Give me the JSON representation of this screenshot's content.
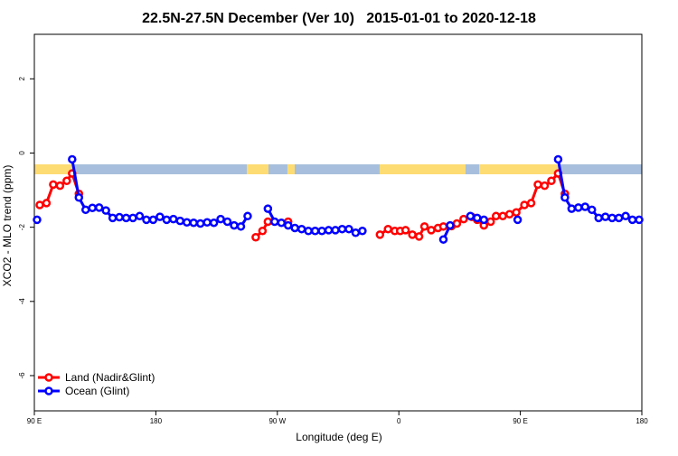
{
  "chart_data": {
    "type": "line",
    "title": "22.5N-27.5N December (Ver 10)   2015-01-01 to 2020-12-18",
    "x_label": "Longitude (deg E)",
    "y_label": "XCO2 - MLO trend (ppm)",
    "xlim": [
      90,
      540
    ],
    "ylim": [
      -6.95,
      3.2
    ],
    "xticks": [
      {
        "value": 90,
        "label": "90 E"
      },
      180,
      {
        "value": 270,
        "label": "90 W"
      },
      {
        "value": 360,
        "label": "0"
      },
      {
        "value": 450,
        "label": "90 E"
      },
      {
        "value": 540,
        "label": "180"
      }
    ],
    "yticks": [
      -6,
      -4,
      -2,
      0,
      2
    ],
    "legend": "bottom-left",
    "series": [
      {
        "name": "Land (Nadir&Glint)",
        "color": "#ff0000",
        "x": [
          94,
          99,
          104,
          109,
          114,
          118,
          123,
          128,
          254,
          259,
          263,
          268,
          278,
          283,
          346,
          352,
          357,
          361,
          365,
          370,
          375,
          379,
          384,
          389,
          393,
          399,
          403,
          408,
          414,
          418,
          423,
          428,
          432,
          437,
          442,
          447,
          453,
          458,
          463,
          468,
          473,
          478,
          483
        ],
        "values": [
          -1.4,
          -1.35,
          -0.85,
          -0.88,
          -0.75,
          -0.55,
          -1.1,
          null,
          -2.27,
          -2.1,
          -1.85,
          null,
          -1.85,
          null,
          -2.2,
          -2.05,
          -2.1,
          -2.1,
          -2.08,
          -2.2,
          -2.25,
          -1.98,
          -2.08,
          -2.02,
          -1.98,
          -1.97,
          -1.9,
          -1.78,
          -1.72,
          -1.8,
          -1.95,
          -1.85,
          -1.7,
          -1.7,
          -1.65,
          -1.6,
          -1.4,
          -1.35,
          -0.85,
          -0.88,
          -0.75,
          -0.55,
          -1.1
        ]
      },
      {
        "name": "Ocean (Glint)",
        "color": "#0000ff",
        "x": [
          92,
          97,
          118,
          123,
          128,
          133,
          138,
          143,
          148,
          153,
          158,
          163,
          168,
          173,
          178,
          183,
          188,
          193,
          198,
          203,
          208,
          213,
          218,
          223,
          228,
          233,
          238,
          243,
          248,
          253,
          263,
          268,
          273,
          278,
          283,
          288,
          293,
          298,
          303,
          308,
          313,
          318,
          323,
          328,
          333,
          338,
          393,
          398,
          403,
          413,
          418,
          423,
          428,
          448,
          453,
          478,
          483,
          488,
          493,
          498,
          503,
          508,
          513,
          518,
          523,
          528,
          533,
          538
        ],
        "values": [
          -1.8,
          null,
          -0.17,
          -1.2,
          -1.53,
          -1.48,
          -1.47,
          -1.55,
          -1.75,
          -1.73,
          -1.75,
          -1.75,
          -1.7,
          -1.8,
          -1.8,
          -1.72,
          -1.8,
          -1.78,
          -1.83,
          -1.87,
          -1.88,
          -1.9,
          -1.87,
          -1.88,
          -1.78,
          -1.85,
          -1.95,
          -1.98,
          -1.7,
          null,
          -1.5,
          -1.85,
          -1.88,
          -1.95,
          -2.02,
          -2.05,
          -2.1,
          -2.1,
          -2.1,
          -2.08,
          -2.08,
          -2.05,
          -2.05,
          -2.15,
          -2.1,
          null,
          -2.33,
          -1.95,
          null,
          -1.7,
          -1.75,
          -1.8,
          null,
          -1.8,
          null,
          -0.17,
          -1.2,
          -1.5,
          -1.47,
          -1.45,
          -1.53,
          -1.75,
          -1.72,
          -1.75,
          -1.75,
          -1.7,
          -1.8,
          -1.8
        ]
      }
    ]
  }
}
